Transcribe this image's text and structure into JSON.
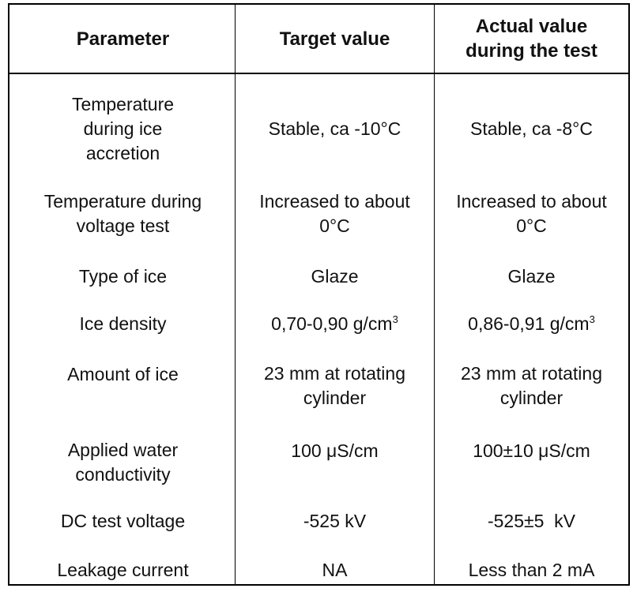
{
  "table": {
    "headers": [
      "Parameter",
      "Target value",
      "Actual value during the test"
    ],
    "rows": [
      {
        "parameter": "Temperature during ice accretion",
        "target": "Stable, ca -10°C",
        "actual": "Stable, ca -8°C"
      },
      {
        "parameter": "Temperature during voltage test",
        "target": "Increased to about 0°C",
        "actual": "Increased to about 0°C"
      },
      {
        "parameter": "Type of ice",
        "target": "Glaze",
        "actual": "Glaze"
      },
      {
        "parameter": "Ice density",
        "target": "0,70-0,90 g/cm",
        "target_sup": "3",
        "actual": "0,86-0,91 g/cm",
        "actual_sup": "3"
      },
      {
        "parameter": "Amount of ice",
        "target": "23 mm at rotating cylinder",
        "actual": "23 mm at rotating cylinder"
      },
      {
        "parameter": "Applied water conductivity",
        "target": "100 μS/cm",
        "actual": "100±10 μS/cm"
      },
      {
        "parameter": "DC test voltage",
        "target": "-525 kV",
        "actual": "-525±5  kV"
      },
      {
        "parameter": "Leakage current",
        "target": "NA",
        "actual": "Less than 2 mA"
      }
    ]
  }
}
